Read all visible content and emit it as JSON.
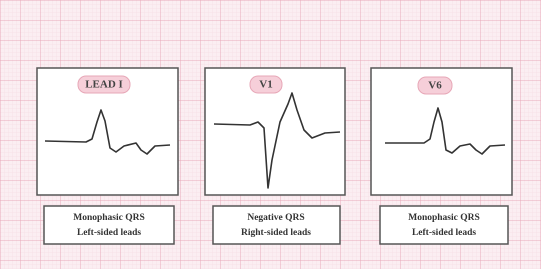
{
  "panels": [
    {
      "lead": "LEAD I",
      "caption": [
        "Monophasic QRS",
        "Left-sided leads"
      ]
    },
    {
      "lead": "V1",
      "caption": [
        "Negative QRS",
        "Right-sided leads"
      ]
    },
    {
      "lead": "V6",
      "caption": [
        "Monophasic QRS",
        "Left-sided leads"
      ]
    }
  ]
}
